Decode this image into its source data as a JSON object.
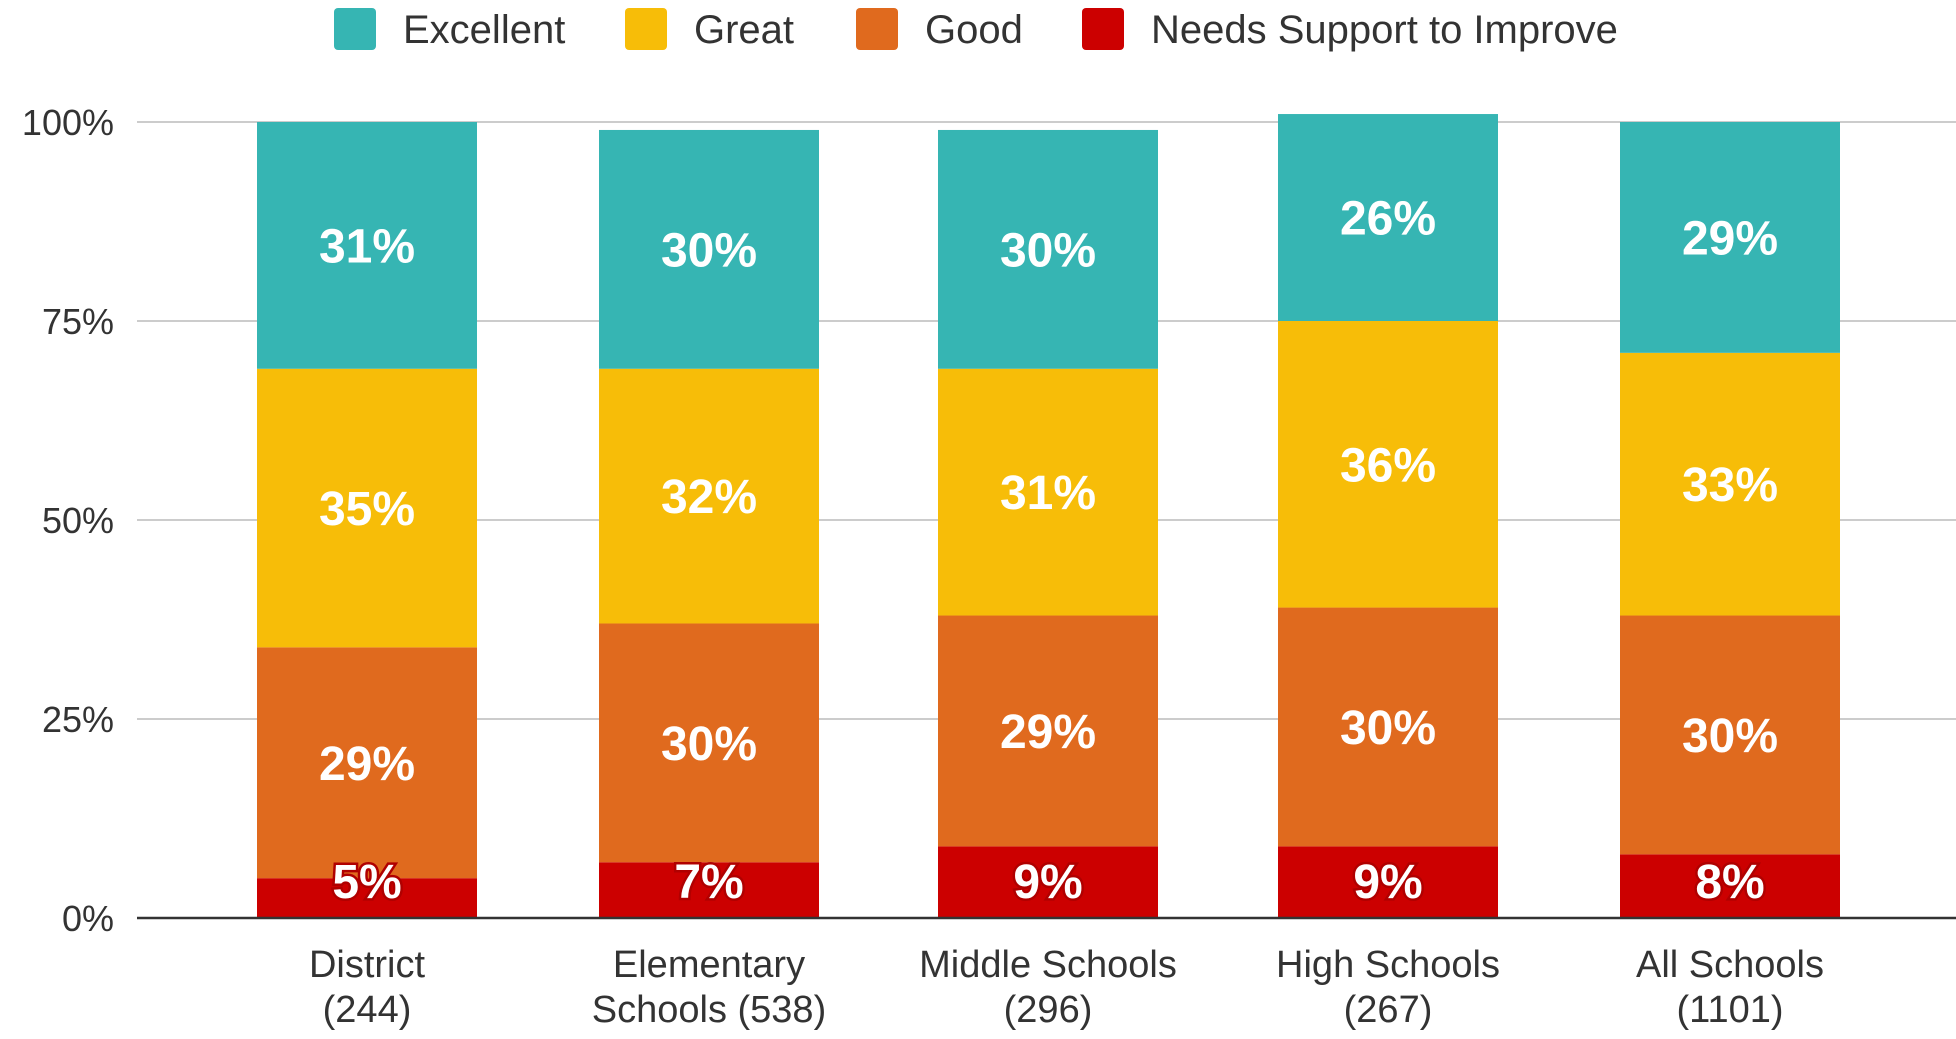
{
  "chart_data": {
    "type": "bar",
    "stacked": true,
    "categories": [
      "District (244)",
      "Elementary Schools (538)",
      "Middle Schools (296)",
      "High Schools (267)",
      "All Schools (1101)"
    ],
    "category_lines": [
      [
        "District",
        "(244)"
      ],
      [
        "Elementary",
        "Schools (538)"
      ],
      [
        "Middle Schools",
        "(296)"
      ],
      [
        "High Schools",
        "(267)"
      ],
      [
        "All Schools",
        "(1101)"
      ]
    ],
    "series": [
      {
        "name": "Needs Support to Improve",
        "color": "#cc0000",
        "values": [
          5,
          7,
          9,
          9,
          8
        ],
        "labels": [
          "5%",
          "7%",
          "9%",
          "9%",
          "8%"
        ]
      },
      {
        "name": "Good",
        "color": "#e06a1e",
        "values": [
          29,
          30,
          29,
          30,
          30
        ],
        "labels": [
          "29%",
          "30%",
          "29%",
          "30%",
          "30%"
        ]
      },
      {
        "name": "Great",
        "color": "#f7bd08",
        "values": [
          35,
          32,
          31,
          36,
          33
        ],
        "labels": [
          "35%",
          "32%",
          "31%",
          "36%",
          "33%"
        ]
      },
      {
        "name": "Excellent",
        "color": "#36b5b3",
        "values": [
          31,
          30,
          30,
          26,
          29
        ],
        "labels": [
          "31%",
          "30%",
          "30%",
          "26%",
          "29%"
        ]
      }
    ],
    "legend_order": [
      "Excellent",
      "Great",
      "Good",
      "Needs Support to Improve"
    ],
    "ylim": [
      0,
      100
    ],
    "yticks": [
      0,
      25,
      50,
      75,
      100
    ],
    "ytick_labels": [
      "0%",
      "25%",
      "50%",
      "75%",
      "100%"
    ],
    "title": "",
    "xlabel": "",
    "ylabel": "",
    "grid": true,
    "legend_position": "top"
  }
}
